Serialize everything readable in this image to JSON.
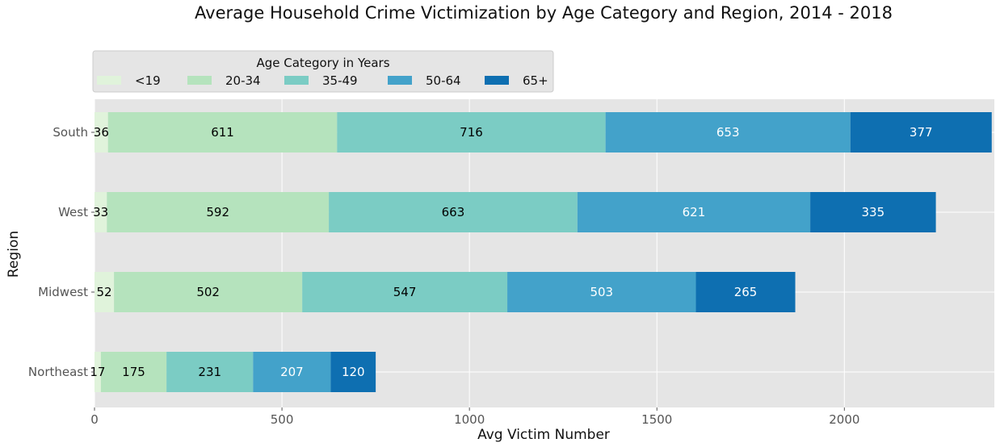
{
  "chart_data": {
    "type": "bar",
    "orientation": "horizontal",
    "stacked": true,
    "title": "Average Household Crime Victimization by Age Category and Region, 2014 - 2018",
    "xlabel": "Avg Victim Number",
    "ylabel": "Region",
    "xlim": [
      0,
      2400
    ],
    "xticks": [
      0,
      500,
      1000,
      1500,
      2000
    ],
    "grid": true,
    "legend": {
      "title": "Age Category in Years",
      "placement": "top-left, above plot"
    },
    "categories": [
      "South",
      "West",
      "Midwest",
      "Northeast"
    ],
    "series": [
      {
        "name": "<19",
        "color": "#e0f3db",
        "label_color": "#000000",
        "values": [
          36,
          33,
          52,
          17
        ]
      },
      {
        "name": "20-34",
        "color": "#b5e3bd",
        "label_color": "#000000",
        "values": [
          611,
          592,
          502,
          175
        ]
      },
      {
        "name": "35-49",
        "color": "#7bccc4",
        "label_color": "#000000",
        "values": [
          716,
          663,
          547,
          231
        ]
      },
      {
        "name": "50-64",
        "color": "#43a2ca",
        "label_color": "#ffffff",
        "values": [
          653,
          621,
          503,
          207
        ]
      },
      {
        "name": "65+",
        "color": "#0e6fb1",
        "label_color": "#ffffff",
        "values": [
          377,
          335,
          265,
          120
        ]
      }
    ],
    "background": "#e5e5e5",
    "grid_color": "#ffffff"
  }
}
